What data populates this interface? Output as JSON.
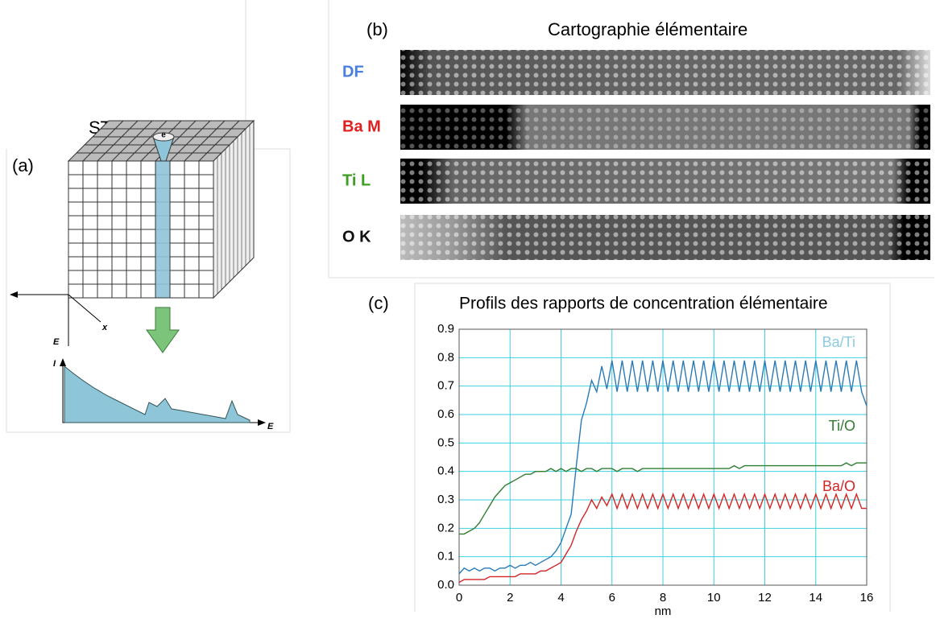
{
  "labels": {
    "a": "(a)",
    "b": "(b)",
    "c": "(c)",
    "stem": "STEM-EELS",
    "map_title": "Cartographie élémentaire",
    "maps": [
      {
        "label": "DF",
        "color": "#4a7fe0"
      },
      {
        "label": "Ba M",
        "color": "#e02020"
      },
      {
        "label": "Ti L",
        "color": "#3aa020"
      },
      {
        "label": "O K",
        "color": "#111111"
      }
    ],
    "beam": "e",
    "axis_e": "E",
    "axis_i": "I",
    "axis_x": "x",
    "axis_e2": "E"
  },
  "chart_data": {
    "type": "line",
    "title": "Profils des rapports de concentration élémentaire",
    "x_label": "nm",
    "x": [
      0,
      0.2,
      0.4,
      0.6,
      0.8,
      1,
      1.2,
      1.4,
      1.6,
      1.8,
      2,
      2.2,
      2.4,
      2.6,
      2.8,
      3,
      3.2,
      3.4,
      3.6,
      3.8,
      4,
      4.2,
      4.4,
      4.6,
      4.8,
      5,
      5.2,
      5.4,
      5.6,
      5.8,
      6,
      6.2,
      6.4,
      6.6,
      6.8,
      7,
      7.2,
      7.4,
      7.6,
      7.8,
      8,
      8.2,
      8.4,
      8.6,
      8.8,
      9,
      9.2,
      9.4,
      9.6,
      9.8,
      10,
      10.2,
      10.4,
      10.6,
      10.8,
      11,
      11.2,
      11.4,
      11.6,
      11.8,
      12,
      12.2,
      12.4,
      12.6,
      12.8,
      13,
      13.2,
      13.4,
      13.6,
      13.8,
      14,
      14.2,
      14.4,
      14.6,
      14.8,
      15,
      15.2,
      15.4,
      15.6,
      15.8,
      16
    ],
    "series": [
      {
        "name": "Ba/Ti",
        "color": "#2a7ab8",
        "label_color": "#8ccbe0",
        "values": [
          0.04,
          0.06,
          0.05,
          0.06,
          0.05,
          0.06,
          0.06,
          0.05,
          0.06,
          0.06,
          0.07,
          0.06,
          0.07,
          0.07,
          0.08,
          0.07,
          0.08,
          0.09,
          0.1,
          0.12,
          0.15,
          0.2,
          0.25,
          0.42,
          0.58,
          0.64,
          0.72,
          0.68,
          0.77,
          0.69,
          0.79,
          0.68,
          0.79,
          0.68,
          0.79,
          0.68,
          0.79,
          0.68,
          0.79,
          0.68,
          0.79,
          0.68,
          0.79,
          0.68,
          0.79,
          0.68,
          0.79,
          0.68,
          0.79,
          0.68,
          0.79,
          0.68,
          0.79,
          0.68,
          0.79,
          0.68,
          0.79,
          0.68,
          0.79,
          0.68,
          0.79,
          0.68,
          0.79,
          0.68,
          0.79,
          0.68,
          0.79,
          0.68,
          0.79,
          0.68,
          0.79,
          0.68,
          0.79,
          0.68,
          0.79,
          0.68,
          0.79,
          0.68,
          0.79,
          0.68,
          0.63
        ]
      },
      {
        "name": "Ti/O",
        "color": "#2e7d32",
        "label_color": "#2e7d32",
        "values": [
          0.18,
          0.18,
          0.19,
          0.2,
          0.22,
          0.25,
          0.28,
          0.31,
          0.33,
          0.35,
          0.36,
          0.37,
          0.38,
          0.39,
          0.39,
          0.4,
          0.4,
          0.4,
          0.41,
          0.4,
          0.41,
          0.4,
          0.41,
          0.41,
          0.4,
          0.41,
          0.41,
          0.4,
          0.41,
          0.41,
          0.41,
          0.4,
          0.41,
          0.41,
          0.41,
          0.4,
          0.41,
          0.41,
          0.41,
          0.41,
          0.41,
          0.41,
          0.41,
          0.41,
          0.41,
          0.41,
          0.41,
          0.41,
          0.41,
          0.41,
          0.41,
          0.41,
          0.41,
          0.41,
          0.42,
          0.41,
          0.42,
          0.42,
          0.42,
          0.42,
          0.42,
          0.42,
          0.42,
          0.42,
          0.42,
          0.42,
          0.42,
          0.42,
          0.42,
          0.42,
          0.42,
          0.42,
          0.42,
          0.42,
          0.42,
          0.42,
          0.43,
          0.42,
          0.43,
          0.43,
          0.43
        ]
      },
      {
        "name": "Ba/O",
        "color": "#d42424",
        "label_color": "#d42424",
        "values": [
          0.01,
          0.02,
          0.02,
          0.02,
          0.02,
          0.02,
          0.03,
          0.03,
          0.03,
          0.03,
          0.03,
          0.03,
          0.04,
          0.04,
          0.04,
          0.04,
          0.05,
          0.05,
          0.06,
          0.07,
          0.08,
          0.11,
          0.14,
          0.19,
          0.23,
          0.26,
          0.3,
          0.27,
          0.31,
          0.28,
          0.32,
          0.27,
          0.32,
          0.27,
          0.32,
          0.27,
          0.32,
          0.27,
          0.32,
          0.27,
          0.32,
          0.27,
          0.32,
          0.27,
          0.32,
          0.27,
          0.32,
          0.27,
          0.32,
          0.27,
          0.32,
          0.27,
          0.32,
          0.27,
          0.32,
          0.27,
          0.32,
          0.27,
          0.32,
          0.27,
          0.32,
          0.27,
          0.32,
          0.27,
          0.32,
          0.27,
          0.32,
          0.27,
          0.32,
          0.27,
          0.32,
          0.27,
          0.32,
          0.27,
          0.32,
          0.27,
          0.32,
          0.27,
          0.32,
          0.27,
          0.27
        ]
      }
    ],
    "xlim": [
      0,
      16
    ],
    "xticks": [
      0,
      2,
      4,
      6,
      8,
      10,
      12,
      14,
      16
    ],
    "ylim": [
      0,
      0.9
    ],
    "yticks": [
      {
        "value": 0,
        "label": "0.0"
      },
      0.1,
      0.2,
      0.3,
      0.4,
      0.5,
      0.6,
      0.7,
      0.8,
      0.9
    ],
    "grid": true,
    "grid_color": "#3fd0e0"
  }
}
